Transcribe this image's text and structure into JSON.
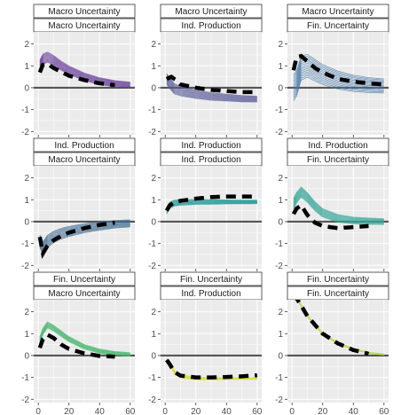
{
  "chart_data": {
    "type": "line",
    "layout": "3x3 facet grid",
    "title": "",
    "xlabel": "",
    "ylabel": "",
    "xlim": [
      0,
      60
    ],
    "ylim": [
      -2,
      2
    ],
    "x_ticks": [
      0,
      20,
      40,
      60
    ],
    "y_ticks": [
      -2,
      -1,
      0,
      1,
      2
    ],
    "grid": true,
    "legend": "none",
    "horizontal_reference_line": 0,
    "panels": [
      {
        "strip_top": "Macro Uncertainty",
        "strip_bottom": "Macro Uncertainty",
        "color": "#6a3d9a",
        "n_lines": 12,
        "lines_median_x": [
          1,
          3,
          6,
          10,
          15,
          20,
          30,
          40,
          50,
          60
        ],
        "lines_median_y": [
          1.0,
          1.3,
          1.4,
          1.25,
          1.0,
          0.8,
          0.5,
          0.3,
          0.18,
          0.12
        ],
        "spread_y": 0.25,
        "dashed_x": [
          1,
          3,
          6,
          10,
          20,
          30,
          40,
          50
        ],
        "dashed_y": [
          0.7,
          1.05,
          1.1,
          0.9,
          0.55,
          0.35,
          0.2,
          0.12
        ]
      },
      {
        "strip_top": "Macro Uncertainty",
        "strip_bottom": "Ind. Production",
        "color": "#5b5c99",
        "n_lines": 12,
        "lines_median_x": [
          1,
          3,
          6,
          10,
          20,
          30,
          40,
          50,
          60
        ],
        "lines_median_y": [
          0.4,
          0.2,
          -0.05,
          -0.15,
          -0.3,
          -0.4,
          -0.45,
          -0.5,
          -0.52
        ],
        "spread_y": 0.25,
        "dashed_x": [
          1,
          4,
          7,
          10,
          20,
          30,
          40,
          50,
          60
        ],
        "dashed_y": [
          0.4,
          0.5,
          0.35,
          0.15,
          0.0,
          -0.1,
          -0.15,
          -0.2,
          -0.2
        ]
      },
      {
        "strip_top": "Macro Uncertainty",
        "strip_bottom": "Fin. Uncertainty",
        "color": "#4a78a8",
        "n_lines": 14,
        "lines_median_x": [
          1,
          3,
          6,
          10,
          15,
          20,
          30,
          40,
          50,
          60
        ],
        "lines_median_y": [
          0.0,
          0.2,
          0.9,
          1.0,
          0.8,
          0.6,
          0.35,
          0.2,
          0.12,
          0.08
        ],
        "spread_y": 0.6,
        "dashed_x": [
          1,
          3,
          6,
          10,
          15,
          20,
          30,
          40,
          50,
          60
        ],
        "dashed_y": [
          0.8,
          1.4,
          1.45,
          1.2,
          0.9,
          0.7,
          0.4,
          0.28,
          0.2,
          0.15
        ]
      },
      {
        "strip_top": "Ind. Production",
        "strip_bottom": "Macro Uncertainty",
        "color": "#3e6b92",
        "n_lines": 12,
        "lines_median_x": [
          1,
          3,
          6,
          10,
          15,
          20,
          30,
          40,
          50,
          60
        ],
        "lines_median_y": [
          -0.9,
          -1.2,
          -0.9,
          -0.7,
          -0.55,
          -0.45,
          -0.3,
          -0.2,
          -0.12,
          -0.08
        ],
        "spread_y": 0.3,
        "dashed_x": [
          1,
          3,
          6,
          10,
          15,
          20,
          30,
          40,
          50
        ],
        "dashed_y": [
          -0.7,
          -1.45,
          -1.1,
          -0.85,
          -0.65,
          -0.5,
          -0.3,
          -0.15,
          -0.05
        ]
      },
      {
        "strip_top": "Ind. Production",
        "strip_bottom": "Ind. Production",
        "color": "#2a9d9a",
        "n_lines": 12,
        "lines_median_x": [
          1,
          3,
          6,
          10,
          20,
          30,
          40,
          50,
          60
        ],
        "lines_median_y": [
          0.5,
          0.75,
          0.85,
          0.88,
          0.9,
          0.9,
          0.9,
          0.9,
          0.9
        ],
        "spread_y": 0.15,
        "dashed_x": [
          1,
          3,
          6,
          10,
          20,
          30,
          40,
          50,
          60
        ],
        "dashed_y": [
          0.5,
          0.75,
          0.88,
          0.95,
          1.05,
          1.12,
          1.15,
          1.15,
          1.15
        ]
      },
      {
        "strip_top": "Ind. Production",
        "strip_bottom": "Fin. Uncertainty",
        "color": "#3aa89a",
        "n_lines": 12,
        "lines_median_x": [
          1,
          3,
          6,
          10,
          15,
          20,
          30,
          40,
          50,
          60
        ],
        "lines_median_y": [
          0.8,
          1.1,
          1.35,
          1.1,
          0.7,
          0.4,
          0.15,
          0.05,
          0.02,
          0.0
        ],
        "spread_y": 0.25,
        "dashed_x": [
          1,
          3,
          6,
          10,
          15,
          20,
          30,
          40,
          50
        ],
        "dashed_y": [
          0.35,
          0.6,
          0.75,
          0.3,
          -0.05,
          -0.2,
          -0.3,
          -0.25,
          -0.2
        ]
      },
      {
        "strip_top": "Fin. Uncertainty",
        "strip_bottom": "Macro Uncertainty",
        "color": "#4cb872",
        "n_lines": 10,
        "lines_median_x": [
          1,
          3,
          6,
          10,
          15,
          20,
          30,
          40,
          50,
          60
        ],
        "lines_median_y": [
          0.7,
          1.1,
          1.4,
          1.25,
          1.0,
          0.75,
          0.4,
          0.2,
          0.1,
          0.05
        ],
        "spread_y": 0.15,
        "dashed_x": [
          1,
          3,
          6,
          10,
          15,
          20,
          30,
          40,
          50
        ],
        "dashed_y": [
          0.35,
          0.75,
          0.95,
          0.8,
          0.5,
          0.3,
          0.1,
          -0.02,
          -0.05
        ]
      },
      {
        "strip_top": "Fin. Uncertainty",
        "strip_bottom": "Ind. Production",
        "color": "#d8e040",
        "n_lines": 10,
        "lines_median_x": [
          1,
          3,
          6,
          10,
          20,
          30,
          40,
          50,
          60
        ],
        "lines_median_y": [
          -0.2,
          -0.4,
          -0.75,
          -0.95,
          -1.05,
          -1.05,
          -1.05,
          -1.05,
          -1.05
        ],
        "spread_y": 0.08,
        "dashed_x": [
          1,
          3,
          6,
          10,
          20,
          30,
          40,
          50,
          60
        ],
        "dashed_y": [
          -0.2,
          -0.4,
          -0.75,
          -0.92,
          -1.0,
          -1.0,
          -0.98,
          -0.95,
          -0.9
        ]
      },
      {
        "strip_top": "Fin. Uncertainty",
        "strip_bottom": "Fin. Uncertainty",
        "color": "#b7df4a",
        "n_lines": 10,
        "lines_median_x": [
          1,
          5,
          10,
          15,
          20,
          30,
          40,
          50,
          60
        ],
        "lines_median_y": [
          2.8,
          2.4,
          1.8,
          1.4,
          1.0,
          0.55,
          0.3,
          0.12,
          0.05
        ],
        "spread_y": 0.05,
        "dashed_x": [
          1,
          5,
          10,
          15,
          20,
          30,
          40,
          50
        ],
        "dashed_y": [
          2.8,
          2.4,
          1.8,
          1.4,
          1.0,
          0.55,
          0.25,
          0.08
        ]
      }
    ]
  }
}
